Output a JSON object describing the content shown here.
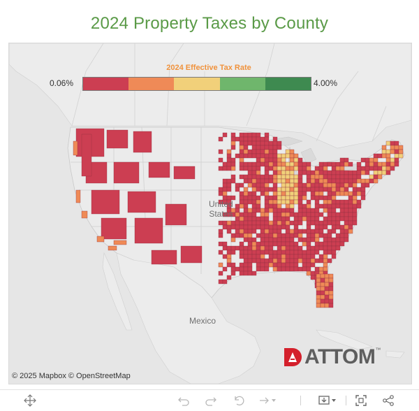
{
  "title": "2024 Property Taxes by County",
  "legend": {
    "title": "2024 Effective Tax Rate",
    "min_label": "0.06%",
    "max_label": "4.00%",
    "colors": [
      "#cc3e52",
      "#ef8a57",
      "#f1d07a",
      "#6fb66c",
      "#3e8a50"
    ]
  },
  "map": {
    "labels": {
      "country_us": "United\nStates",
      "country_mx": "Mexico"
    },
    "attribution": "© 2025 Mapbox  © OpenStreetMap",
    "land_color": "#e7e7e7",
    "county_base_color": "#cc3e52"
  },
  "logo": {
    "text": "ATTOM",
    "trademark": "™",
    "accent": "#d4202c"
  },
  "toolbar": {
    "icons": [
      "move-icon",
      "undo-icon",
      "redo-icon",
      "revert-icon",
      "refresh-icon",
      "download-icon",
      "fullscreen-icon",
      "share-icon"
    ]
  }
}
